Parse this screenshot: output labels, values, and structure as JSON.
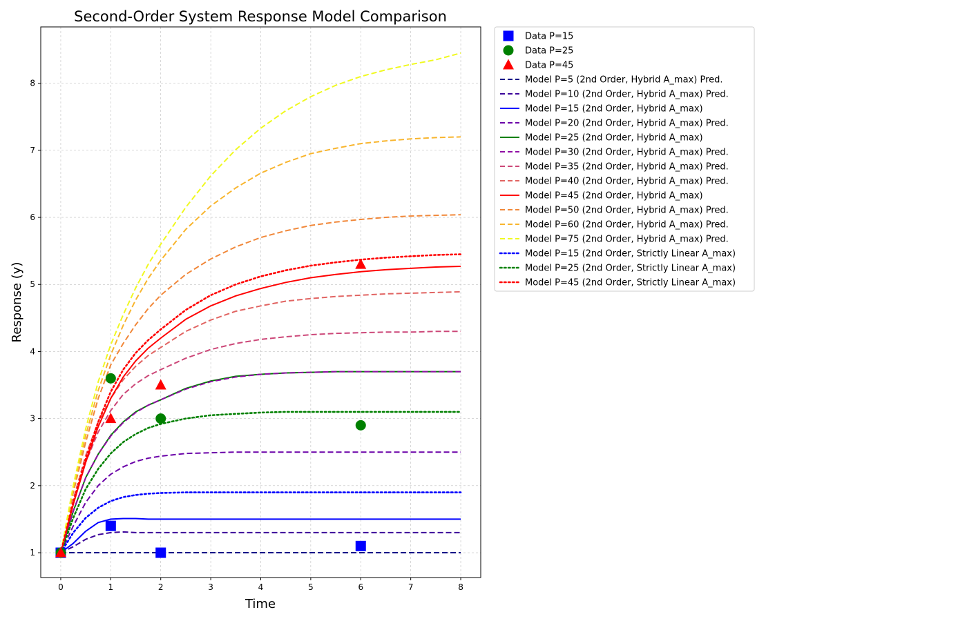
{
  "chart_data": {
    "type": "line",
    "title": "Second-Order System Response Model Comparison",
    "xlabel": "Time",
    "ylabel": "Response (y)",
    "xlim": [
      -0.4,
      8.4
    ],
    "ylim": [
      0.63,
      8.84
    ],
    "xticks": [
      0,
      1,
      2,
      3,
      4,
      5,
      6,
      7,
      8
    ],
    "yticks": [
      1,
      2,
      3,
      4,
      5,
      6,
      7,
      8
    ],
    "grid": true,
    "legend_position": "outside-right-top",
    "x": [
      0,
      0.25,
      0.5,
      0.75,
      1,
      1.25,
      1.5,
      1.75,
      2,
      2.5,
      3,
      3.5,
      4,
      4.5,
      5,
      5.5,
      6,
      6.5,
      7,
      7.5,
      8
    ],
    "series": [
      {
        "name": "Data P=15",
        "kind": "scatter",
        "marker": "square",
        "color": "#0000ff",
        "x": [
          0,
          1,
          2,
          6
        ],
        "y": [
          1.0,
          1.4,
          1.0,
          1.1
        ]
      },
      {
        "name": "Data P=25",
        "kind": "scatter",
        "marker": "circle",
        "color": "#008000",
        "x": [
          0,
          1,
          2,
          6
        ],
        "y": [
          1.0,
          3.6,
          3.0,
          2.9
        ]
      },
      {
        "name": "Data P=45",
        "kind": "scatter",
        "marker": "triangle",
        "color": "#ff0000",
        "x": [
          0,
          1,
          2,
          6
        ],
        "y": [
          1.0,
          3.0,
          3.5,
          5.3
        ]
      },
      {
        "name": "Model P=5 (2nd Order, Hybrid A_max) Pred.",
        "kind": "line",
        "dash": "dashed",
        "color": "#0d0887",
        "y": [
          1.0,
          1.0,
          1.0,
          1.0,
          1.0,
          1.0,
          1.0,
          1.0,
          1.0,
          1.0,
          1.0,
          1.0,
          1.0,
          1.0,
          1.0,
          1.0,
          1.0,
          1.0,
          1.0,
          1.0,
          1.0
        ]
      },
      {
        "name": "Model P=10 (2nd Order, Hybrid A_max) Pred.",
        "kind": "line",
        "dash": "dashed",
        "color": "#3b049a",
        "y": [
          1.0,
          1.09,
          1.2,
          1.27,
          1.3,
          1.31,
          1.3,
          1.3,
          1.3,
          1.3,
          1.3,
          1.3,
          1.3,
          1.3,
          1.3,
          1.3,
          1.3,
          1.3,
          1.3,
          1.3,
          1.3
        ]
      },
      {
        "name": "Model P=15 (2nd Order, Hybrid A_max)",
        "kind": "line",
        "dash": "solid",
        "color": "#0000ff",
        "y": [
          1.0,
          1.14,
          1.32,
          1.45,
          1.5,
          1.51,
          1.51,
          1.5,
          1.5,
          1.5,
          1.5,
          1.5,
          1.5,
          1.5,
          1.5,
          1.5,
          1.5,
          1.5,
          1.5,
          1.5,
          1.5
        ]
      },
      {
        "name": "Model P=20 (2nd Order, Hybrid A_max) Pred.",
        "kind": "line",
        "dash": "dashed",
        "color": "#6a00a8",
        "y": [
          1.0,
          1.4,
          1.75,
          2.0,
          2.17,
          2.28,
          2.36,
          2.41,
          2.44,
          2.48,
          2.49,
          2.5,
          2.5,
          2.5,
          2.5,
          2.5,
          2.5,
          2.5,
          2.5,
          2.5,
          2.5
        ]
      },
      {
        "name": "Model P=25 (2nd Order, Hybrid A_max)",
        "kind": "line",
        "dash": "solid",
        "color": "#008000",
        "y": [
          1.0,
          1.62,
          2.12,
          2.47,
          2.75,
          2.95,
          3.1,
          3.2,
          3.28,
          3.45,
          3.56,
          3.63,
          3.66,
          3.68,
          3.69,
          3.7,
          3.7,
          3.7,
          3.7,
          3.7,
          3.7
        ]
      },
      {
        "name": "Model P=30 (2nd Order, Hybrid A_max) Pred.",
        "kind": "line",
        "dash": "dashed",
        "color": "#8f0da4",
        "y": [
          1.0,
          1.62,
          2.12,
          2.47,
          2.74,
          2.94,
          3.09,
          3.2,
          3.28,
          3.44,
          3.55,
          3.62,
          3.66,
          3.68,
          3.69,
          3.7,
          3.7,
          3.7,
          3.7,
          3.7,
          3.7
        ]
      },
      {
        "name": "Model P=35 (2nd Order, Hybrid A_max) Pred.",
        "kind": "line",
        "dash": "dashed",
        "color": "#cc4778",
        "y": [
          1.0,
          1.75,
          2.35,
          2.8,
          3.12,
          3.36,
          3.52,
          3.64,
          3.73,
          3.9,
          4.03,
          4.12,
          4.18,
          4.22,
          4.25,
          4.27,
          4.28,
          4.29,
          4.29,
          4.3,
          4.3
        ]
      },
      {
        "name": "Model P=40 (2nd Order, Hybrid A_max) Pred.",
        "kind": "line",
        "dash": "dashed",
        "color": "#e16462",
        "y": [
          1.0,
          1.8,
          2.45,
          2.95,
          3.3,
          3.58,
          3.78,
          3.94,
          4.06,
          4.3,
          4.47,
          4.6,
          4.68,
          4.75,
          4.79,
          4.82,
          4.84,
          4.86,
          4.87,
          4.88,
          4.89
        ]
      },
      {
        "name": "Model P=45 (2nd Order, Hybrid A_max)",
        "kind": "line",
        "dash": "solid",
        "color": "#ff0000",
        "y": [
          1.0,
          1.72,
          2.35,
          2.88,
          3.3,
          3.62,
          3.86,
          4.05,
          4.2,
          4.48,
          4.68,
          4.83,
          4.94,
          5.03,
          5.1,
          5.15,
          5.19,
          5.22,
          5.24,
          5.26,
          5.27
        ]
      },
      {
        "name": "Model P=50 (2nd Order, Hybrid A_max) Pred.",
        "kind": "line",
        "dash": "dashed",
        "color": "#f1883a",
        "y": [
          1.0,
          1.9,
          2.65,
          3.3,
          3.8,
          4.12,
          4.4,
          4.64,
          4.84,
          5.15,
          5.38,
          5.56,
          5.7,
          5.8,
          5.88,
          5.93,
          5.97,
          6.0,
          6.02,
          6.03,
          6.04
        ]
      },
      {
        "name": "Model P=60 (2nd Order, Hybrid A_max) Pred.",
        "kind": "line",
        "dash": "dashed",
        "color": "#f8b52e",
        "y": [
          1.0,
          1.95,
          2.75,
          3.42,
          3.95,
          4.39,
          4.77,
          5.09,
          5.36,
          5.82,
          6.17,
          6.44,
          6.66,
          6.82,
          6.95,
          7.03,
          7.1,
          7.14,
          7.17,
          7.19,
          7.2
        ]
      },
      {
        "name": "Model P=75 (2nd Order, Hybrid A_max) Pred.",
        "kind": "line",
        "dash": "dashed",
        "color": "#f0f921",
        "y": [
          1.0,
          2.0,
          2.85,
          3.55,
          4.1,
          4.55,
          4.95,
          5.3,
          5.6,
          6.15,
          6.62,
          7.01,
          7.33,
          7.59,
          7.8,
          7.97,
          8.1,
          8.2,
          8.28,
          8.35,
          8.45
        ]
      },
      {
        "name": "Model P=15 (2nd Order, Strictly Linear A_max)",
        "kind": "line",
        "dash": "dotted",
        "color": "#0000ff",
        "y": [
          1.0,
          1.3,
          1.52,
          1.67,
          1.77,
          1.83,
          1.86,
          1.88,
          1.89,
          1.9,
          1.9,
          1.9,
          1.9,
          1.9,
          1.9,
          1.9,
          1.9,
          1.9,
          1.9,
          1.9,
          1.9
        ]
      },
      {
        "name": "Model P=25 (2nd Order, Strictly Linear A_max)",
        "kind": "line",
        "dash": "dotted",
        "color": "#008000",
        "y": [
          1.0,
          1.52,
          1.95,
          2.25,
          2.48,
          2.65,
          2.77,
          2.86,
          2.92,
          3.0,
          3.05,
          3.07,
          3.09,
          3.1,
          3.1,
          3.1,
          3.1,
          3.1,
          3.1,
          3.1,
          3.1
        ]
      },
      {
        "name": "Model P=45 (2nd Order, Strictly Linear A_max)",
        "kind": "line",
        "dash": "dotted",
        "color": "#ff0000",
        "y": [
          1.0,
          1.75,
          2.4,
          2.95,
          3.4,
          3.73,
          3.98,
          4.17,
          4.33,
          4.62,
          4.84,
          5.0,
          5.12,
          5.21,
          5.28,
          5.33,
          5.37,
          5.4,
          5.42,
          5.44,
          5.45
        ]
      }
    ]
  }
}
